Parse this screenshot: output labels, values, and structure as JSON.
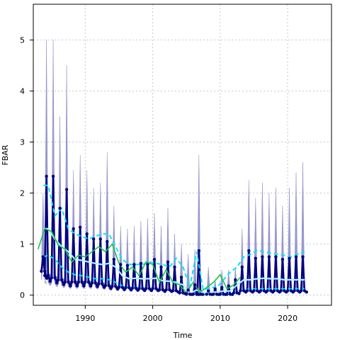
{
  "chart_data": {
    "type": "line",
    "title": "",
    "xlabel": "Time",
    "ylabel": "FBAR",
    "xlim": [
      1982.3,
      2026.5
    ],
    "ylim": [
      -0.2,
      5.7
    ],
    "xticks": [
      1990,
      2000,
      2010,
      2020
    ],
    "yticks": [
      0,
      1,
      2,
      3,
      4,
      5
    ],
    "grid": true,
    "legend": "none",
    "colors": {
      "season_band": "#8f8fc8",
      "season_line": "#000080",
      "season_points": "#000080",
      "annual_mean": "#b3f2ff",
      "annual_band": "#00e5ff",
      "green_line": "#1bc44a",
      "grid": "#c8c8c8"
    },
    "season_peaks": [
      {
        "x": 1983.75,
        "lo": 0.55,
        "mid": 0.75,
        "hi": 2.0
      },
      {
        "x": 1984.25,
        "lo": 0.45,
        "mid": 2.33,
        "hi": 5.0
      },
      {
        "x": 1985.25,
        "lo": 0.4,
        "mid": 2.33,
        "hi": 5.0
      },
      {
        "x": 1986.25,
        "lo": 0.35,
        "mid": 1.7,
        "hi": 3.5
      },
      {
        "x": 1987.25,
        "lo": 0.3,
        "mid": 2.07,
        "hi": 4.5
      },
      {
        "x": 1988.25,
        "lo": 0.3,
        "mid": 1.3,
        "hi": 2.45
      },
      {
        "x": 1989.25,
        "lo": 0.3,
        "mid": 1.33,
        "hi": 2.75
      },
      {
        "x": 1990.25,
        "lo": 0.3,
        "mid": 1.2,
        "hi": 2.45
      },
      {
        "x": 1991.25,
        "lo": 0.28,
        "mid": 1.1,
        "hi": 2.1
      },
      {
        "x": 1992.25,
        "lo": 0.26,
        "mid": 1.1,
        "hi": 2.2
      },
      {
        "x": 1993.25,
        "lo": 0.22,
        "mid": 1.05,
        "hi": 2.8
      },
      {
        "x": 1994.25,
        "lo": 0.2,
        "mid": 0.7,
        "hi": 1.75
      },
      {
        "x": 1995.25,
        "lo": 0.18,
        "mid": 0.6,
        "hi": 1.35
      },
      {
        "x": 1996.25,
        "lo": 0.17,
        "mid": 0.58,
        "hi": 1.3
      },
      {
        "x": 1997.25,
        "lo": 0.16,
        "mid": 0.6,
        "hi": 1.35
      },
      {
        "x": 1998.25,
        "lo": 0.15,
        "mid": 0.62,
        "hi": 1.45
      },
      {
        "x": 1999.25,
        "lo": 0.15,
        "mid": 0.6,
        "hi": 1.5
      },
      {
        "x": 2000.25,
        "lo": 0.15,
        "mid": 0.7,
        "hi": 1.6
      },
      {
        "x": 2001.25,
        "lo": 0.12,
        "mid": 0.55,
        "hi": 1.35
      },
      {
        "x": 2002.25,
        "lo": 0.12,
        "mid": 0.65,
        "hi": 1.7
      },
      {
        "x": 2003.25,
        "lo": 0.1,
        "mid": 0.55,
        "hi": 1.2
      },
      {
        "x": 2004.25,
        "lo": 0.05,
        "mid": 0.35,
        "hi": 1.0
      },
      {
        "x": 2005.25,
        "lo": 0.02,
        "mid": 0.1,
        "hi": 0.8
      },
      {
        "x": 2006.25,
        "lo": 0.02,
        "mid": 0.2,
        "hi": 0.9
      },
      {
        "x": 2006.85,
        "lo": 0.02,
        "mid": 0.87,
        "hi": 2.75
      },
      {
        "x": 2008.25,
        "lo": 0.02,
        "mid": 0.08,
        "hi": 0.55
      },
      {
        "x": 2009.25,
        "lo": 0.02,
        "mid": 0.12,
        "hi": 0.3
      },
      {
        "x": 2010.25,
        "lo": 0.02,
        "mid": 0.15,
        "hi": 0.5
      },
      {
        "x": 2011.25,
        "lo": 0.02,
        "mid": 0.18,
        "hi": 0.5
      },
      {
        "x": 2012.25,
        "lo": 0.05,
        "mid": 0.3,
        "hi": 0.55
      },
      {
        "x": 2013.25,
        "lo": 0.1,
        "mid": 0.55,
        "hi": 1.3
      },
      {
        "x": 2014.25,
        "lo": 0.1,
        "mid": 0.87,
        "hi": 2.25
      },
      {
        "x": 2015.25,
        "lo": 0.1,
        "mid": 0.72,
        "hi": 1.9
      },
      {
        "x": 2016.25,
        "lo": 0.1,
        "mid": 0.75,
        "hi": 2.2
      },
      {
        "x": 2017.25,
        "lo": 0.1,
        "mid": 0.75,
        "hi": 2.0
      },
      {
        "x": 2018.25,
        "lo": 0.1,
        "mid": 0.75,
        "hi": 2.1
      },
      {
        "x": 2019.25,
        "lo": 0.1,
        "mid": 0.7,
        "hi": 1.75
      },
      {
        "x": 2020.25,
        "lo": 0.1,
        "mid": 0.72,
        "hi": 2.1
      },
      {
        "x": 2021.25,
        "lo": 0.1,
        "mid": 0.75,
        "hi": 2.4
      },
      {
        "x": 2022.25,
        "lo": 0.1,
        "mid": 0.75,
        "hi": 2.6
      }
    ],
    "troughs": [
      0.55,
      0.45,
      0.4,
      0.35,
      0.3,
      0.3,
      0.3,
      0.3,
      0.28,
      0.26,
      0.22,
      0.2,
      0.18,
      0.17,
      0.16,
      0.15,
      0.15,
      0.15,
      0.12,
      0.12,
      0.1,
      0.05,
      0.02,
      0.02,
      0.02,
      0.02,
      0.02,
      0.02,
      0.02,
      0.05,
      0.1,
      0.1,
      0.1,
      0.1,
      0.1,
      0.1,
      0.1,
      0.1,
      0.1,
      0.1
    ],
    "series": [
      {
        "id": "green",
        "x": [
          1983,
          1984,
          1985,
          1986,
          1987,
          1988,
          1989,
          1990,
          1991,
          1992,
          1993,
          1994,
          1995,
          1996,
          1997,
          1998,
          1999,
          2000,
          2001,
          2002,
          2003,
          2004,
          2005,
          2006,
          2007,
          2008,
          2009,
          2010,
          2011,
          2012,
          2013
        ],
        "y": [
          0.9,
          1.3,
          1.25,
          0.98,
          0.9,
          0.65,
          0.78,
          0.75,
          0.85,
          0.95,
          0.85,
          1.0,
          0.62,
          0.45,
          0.55,
          0.38,
          0.65,
          0.6,
          0.25,
          0.5,
          0.25,
          0.2,
          0.05,
          0.25,
          0.05,
          0.15,
          0.25,
          0.4,
          0.12,
          0.2,
          0.35
        ]
      },
      {
        "id": "annual-mean",
        "x": [
          1983.8,
          1984.5,
          1985.5,
          1986.5,
          1987.5,
          1988.5,
          1989.5,
          1990.5,
          1991.5,
          1992.5,
          1993.5,
          1994.5,
          1995.5,
          1996.5,
          1997.5,
          1998.5,
          1999.5,
          2000.5,
          2001.5,
          2002.5,
          2003.5,
          2004.5,
          2005.5,
          2006.5,
          2007.5,
          2008.5,
          2009.5,
          2010.5,
          2011.5,
          2012.5,
          2013.5,
          2014.5,
          2015.5,
          2016.5,
          2017.5,
          2018.5,
          2019.5,
          2020.5,
          2021.5,
          2022.5
        ],
        "y": [
          1.3,
          1.3,
          1.1,
          0.95,
          0.85,
          0.7,
          0.68,
          0.65,
          0.62,
          0.6,
          0.62,
          0.55,
          0.38,
          0.32,
          0.33,
          0.32,
          0.32,
          0.33,
          0.28,
          0.27,
          0.25,
          0.2,
          0.03,
          0.1,
          0.05,
          0.06,
          0.06,
          0.08,
          0.08,
          0.2,
          0.3,
          0.3,
          0.32,
          0.33,
          0.32,
          0.32,
          0.3,
          0.3,
          0.3,
          0.3
        ]
      },
      {
        "id": "annual-upper",
        "x": [
          1983.8,
          1984.5,
          1985.5,
          1986.5,
          1987.5,
          1988.5,
          1989.5,
          1990.5,
          1991.5,
          1992.5,
          1993.5,
          1994.5,
          1995.5,
          1996.5,
          1997.5,
          1998.5,
          1999.5,
          2000.5,
          2001.5,
          2002.5,
          2003.5,
          2004.5,
          2005.5,
          2006.5,
          2007.5,
          2008.5,
          2009.5,
          2010.5,
          2011.5,
          2012.5,
          2013.5,
          2014.5,
          2015.5,
          2016.5,
          2017.5,
          2018.5,
          2019.5,
          2020.5,
          2021.5,
          2022.5
        ],
        "y": [
          2.15,
          2.15,
          1.55,
          1.7,
          1.3,
          1.2,
          1.15,
          1.1,
          1.15,
          1.2,
          1.2,
          0.95,
          0.7,
          0.6,
          0.6,
          0.6,
          0.65,
          0.62,
          0.6,
          0.55,
          0.72,
          0.55,
          0.15,
          0.85,
          0.1,
          0.15,
          0.15,
          0.3,
          0.45,
          0.55,
          0.75,
          0.8,
          0.88,
          0.85,
          0.82,
          0.8,
          0.78,
          0.75,
          0.8,
          0.85
        ]
      },
      {
        "id": "annual-lower",
        "x": [
          1983.8,
          1984.5,
          1985.5,
          1986.5,
          1987.5,
          1988.5,
          1989.5,
          1990.5,
          1991.5,
          1992.5,
          1993.5,
          1994.5,
          1995.5,
          1996.5,
          1997.5,
          1998.5,
          1999.5,
          2000.5,
          2001.5,
          2002.5,
          2003.5,
          2004.5,
          2005.5,
          2006.5,
          2007.5,
          2008.5,
          2009.5,
          2010.5,
          2011.5,
          2012.5,
          2013.5,
          2014.5,
          2015.5,
          2016.5,
          2017.5,
          2018.5,
          2019.5,
          2020.5,
          2021.5,
          2022.5
        ],
        "y": [
          0.75,
          0.78,
          0.7,
          0.55,
          0.45,
          0.4,
          0.38,
          0.35,
          0.32,
          0.32,
          0.3,
          0.25,
          0.18,
          0.15,
          0.15,
          0.14,
          0.13,
          0.12,
          0.1,
          0.1,
          0.08,
          0.05,
          0.01,
          0.02,
          0.02,
          0.02,
          0.02,
          0.03,
          0.03,
          0.05,
          0.1,
          0.12,
          0.12,
          0.12,
          0.12,
          0.12,
          0.12,
          0.12,
          0.12,
          0.12
        ]
      }
    ]
  }
}
